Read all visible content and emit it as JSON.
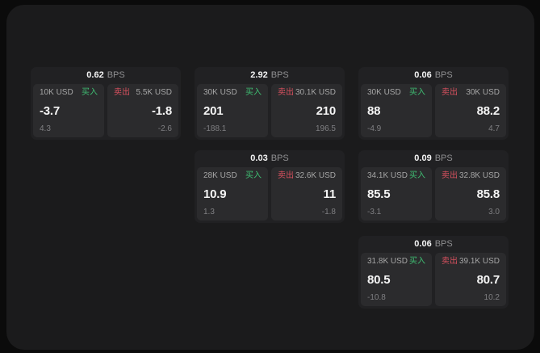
{
  "colors": {
    "outer_bg": "#0b0b0b",
    "panel_bg": "#1b1b1c",
    "card_bg": "#212123",
    "subpanel_bg": "#2b2b2d",
    "text_primary": "#f5f5f5",
    "text_secondary": "#a6a6a6",
    "text_dim": "#7f7f82",
    "text_unit": "#909092",
    "green": "#3fbf73",
    "red": "#d9515f"
  },
  "labels": {
    "bps_unit": "BPS",
    "buy": "买入",
    "sell": "卖出"
  },
  "cards": [
    {
      "bps_value": "0.62",
      "bps_unit": "BPS",
      "buy": {
        "amount": "10K USD",
        "side_label": "买入",
        "price": "-3.7",
        "delta": "4.3"
      },
      "sell": {
        "amount": "5.5K USD",
        "side_label": "卖出",
        "price": "-1.8",
        "delta": "-2.6"
      }
    },
    {
      "bps_value": "2.92",
      "bps_unit": "BPS",
      "buy": {
        "amount": "30K USD",
        "side_label": "买入",
        "price": "201",
        "delta": "-188.1"
      },
      "sell": {
        "amount": "30.1K USD",
        "side_label": "卖出",
        "price": "210",
        "delta": "196.5"
      }
    },
    {
      "bps_value": "0.06",
      "bps_unit": "BPS",
      "buy": {
        "amount": "30K USD",
        "side_label": "买入",
        "price": "88",
        "delta": "-4.9"
      },
      "sell": {
        "amount": "30K USD",
        "side_label": "卖出",
        "price": "88.2",
        "delta": "4.7"
      }
    },
    {
      "bps_value": "0.03",
      "bps_unit": "BPS",
      "buy": {
        "amount": "28K USD",
        "side_label": "买入",
        "price": "10.9",
        "delta": "1.3"
      },
      "sell": {
        "amount": "32.6K USD",
        "side_label": "卖出",
        "price": "11",
        "delta": "-1.8"
      }
    },
    {
      "bps_value": "0.09",
      "bps_unit": "BPS",
      "buy": {
        "amount": "34.1K USD",
        "side_label": "买入",
        "price": "85.5",
        "delta": "-3.1"
      },
      "sell": {
        "amount": "32.8K USD",
        "side_label": "卖出",
        "price": "85.8",
        "delta": "3.0"
      }
    },
    {
      "bps_value": "0.06",
      "bps_unit": "BPS",
      "buy": {
        "amount": "31.8K USD",
        "side_label": "买入",
        "price": "80.5",
        "delta": "-10.8"
      },
      "sell": {
        "amount": "39.1K USD",
        "side_label": "卖出",
        "price": "80.7",
        "delta": "10.2"
      }
    }
  ]
}
